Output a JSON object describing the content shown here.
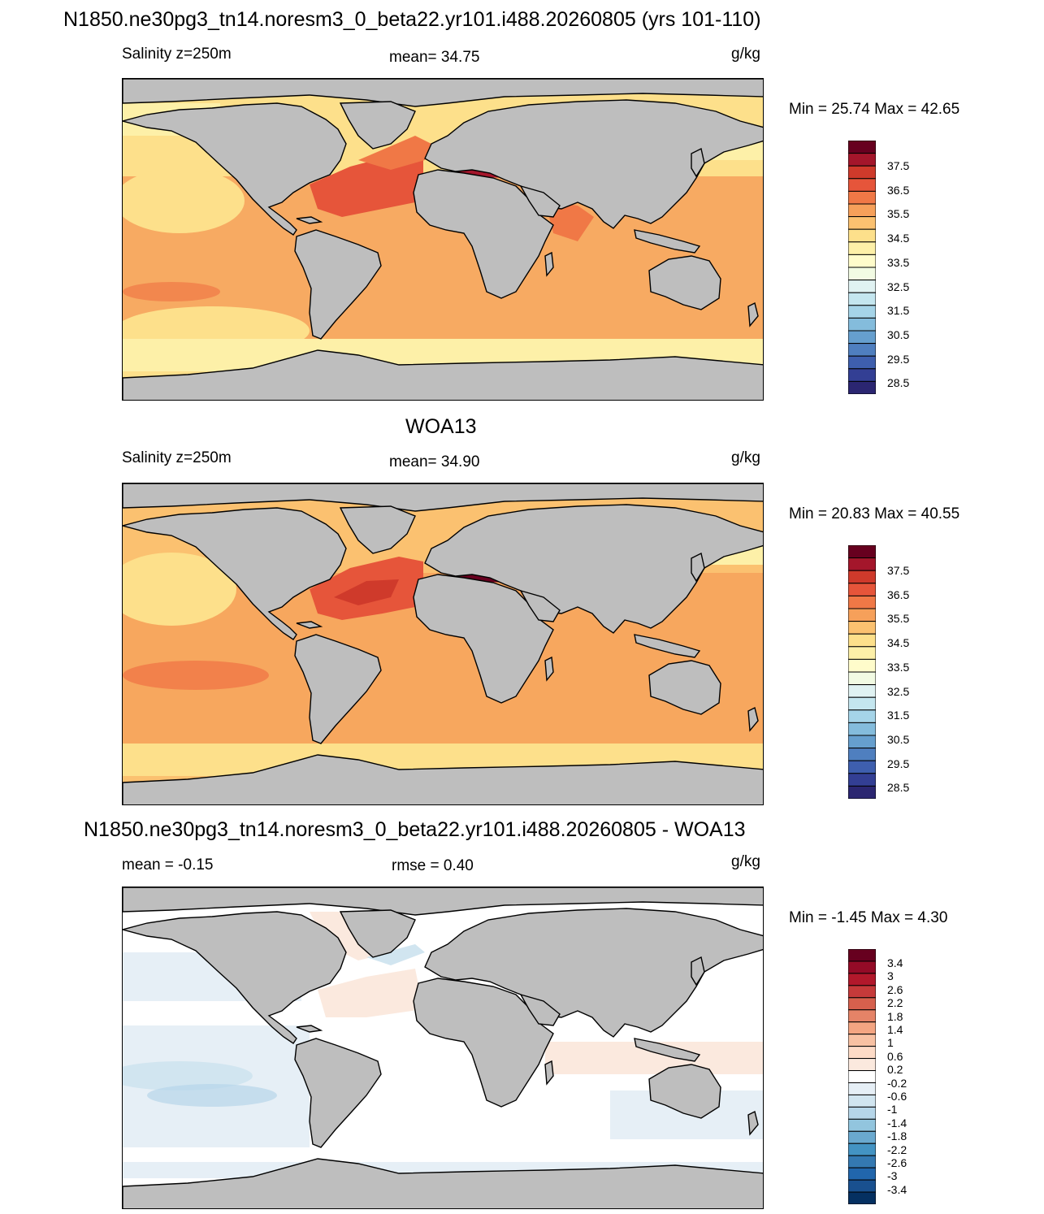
{
  "panel1": {
    "title": "N1850.ne30pg3_tn14.noresm3_0_beta22.yr101.i488.20260805 (yrs 101-110)",
    "left": "Salinity z=250m",
    "center": "mean=  34.75",
    "units": "g/kg",
    "minmax": "Min =  25.74 Max =  42.65"
  },
  "panel2": {
    "title": "WOA13",
    "left": "Salinity z=250m",
    "center": "mean=  34.90",
    "units": "g/kg",
    "minmax": "Min =  20.83 Max =  40.55"
  },
  "panel3": {
    "title": "N1850.ne30pg3_tn14.noresm3_0_beta22.yr101.i488.20260805 - WOA13",
    "left": "mean =  -0.15",
    "center": "rmse =   0.40",
    "units": "g/kg",
    "minmax": "Min =  -1.45 Max =   4.30"
  },
  "colorbar_abs": {
    "labels": [
      "37.5",
      "36.5",
      "35.5",
      "34.5",
      "33.5",
      "32.5",
      "31.5",
      "30.5",
      "29.5",
      "28.5"
    ],
    "colors": [
      "#67001f",
      "#a4162b",
      "#cf3a2b",
      "#e6553a",
      "#f07846",
      "#f6a05a",
      "#fbc170",
      "#fde08b",
      "#fdf0a8",
      "#fffccb",
      "#f2fbe3",
      "#e0f2f2",
      "#c4e6ef",
      "#a5d4e8",
      "#84bcdc",
      "#669fce",
      "#4f7fbf",
      "#3e5fae",
      "#333f94",
      "#2b2671"
    ]
  },
  "colorbar_diff": {
    "labels": [
      "3.4",
      "3",
      "2.6",
      "2.2",
      "1.8",
      "1.4",
      "1",
      "0.6",
      "0.2",
      "-0.2",
      "-0.6",
      "-1",
      "-1.4",
      "-1.8",
      "-2.2",
      "-2.6",
      "-3",
      "-3.4"
    ],
    "colors": [
      "#67001f",
      "#940b27",
      "#b2182b",
      "#c63a3a",
      "#d6604d",
      "#e58367",
      "#f4a582",
      "#f8c1a3",
      "#fddbc7",
      "#fbe9de",
      "#ffffff",
      "#e6eff6",
      "#d1e5f0",
      "#b6d6e9",
      "#92c5de",
      "#6aa9cf",
      "#4393c3",
      "#3479b2",
      "#2166ac",
      "#19508f",
      "#053061"
    ]
  }
}
